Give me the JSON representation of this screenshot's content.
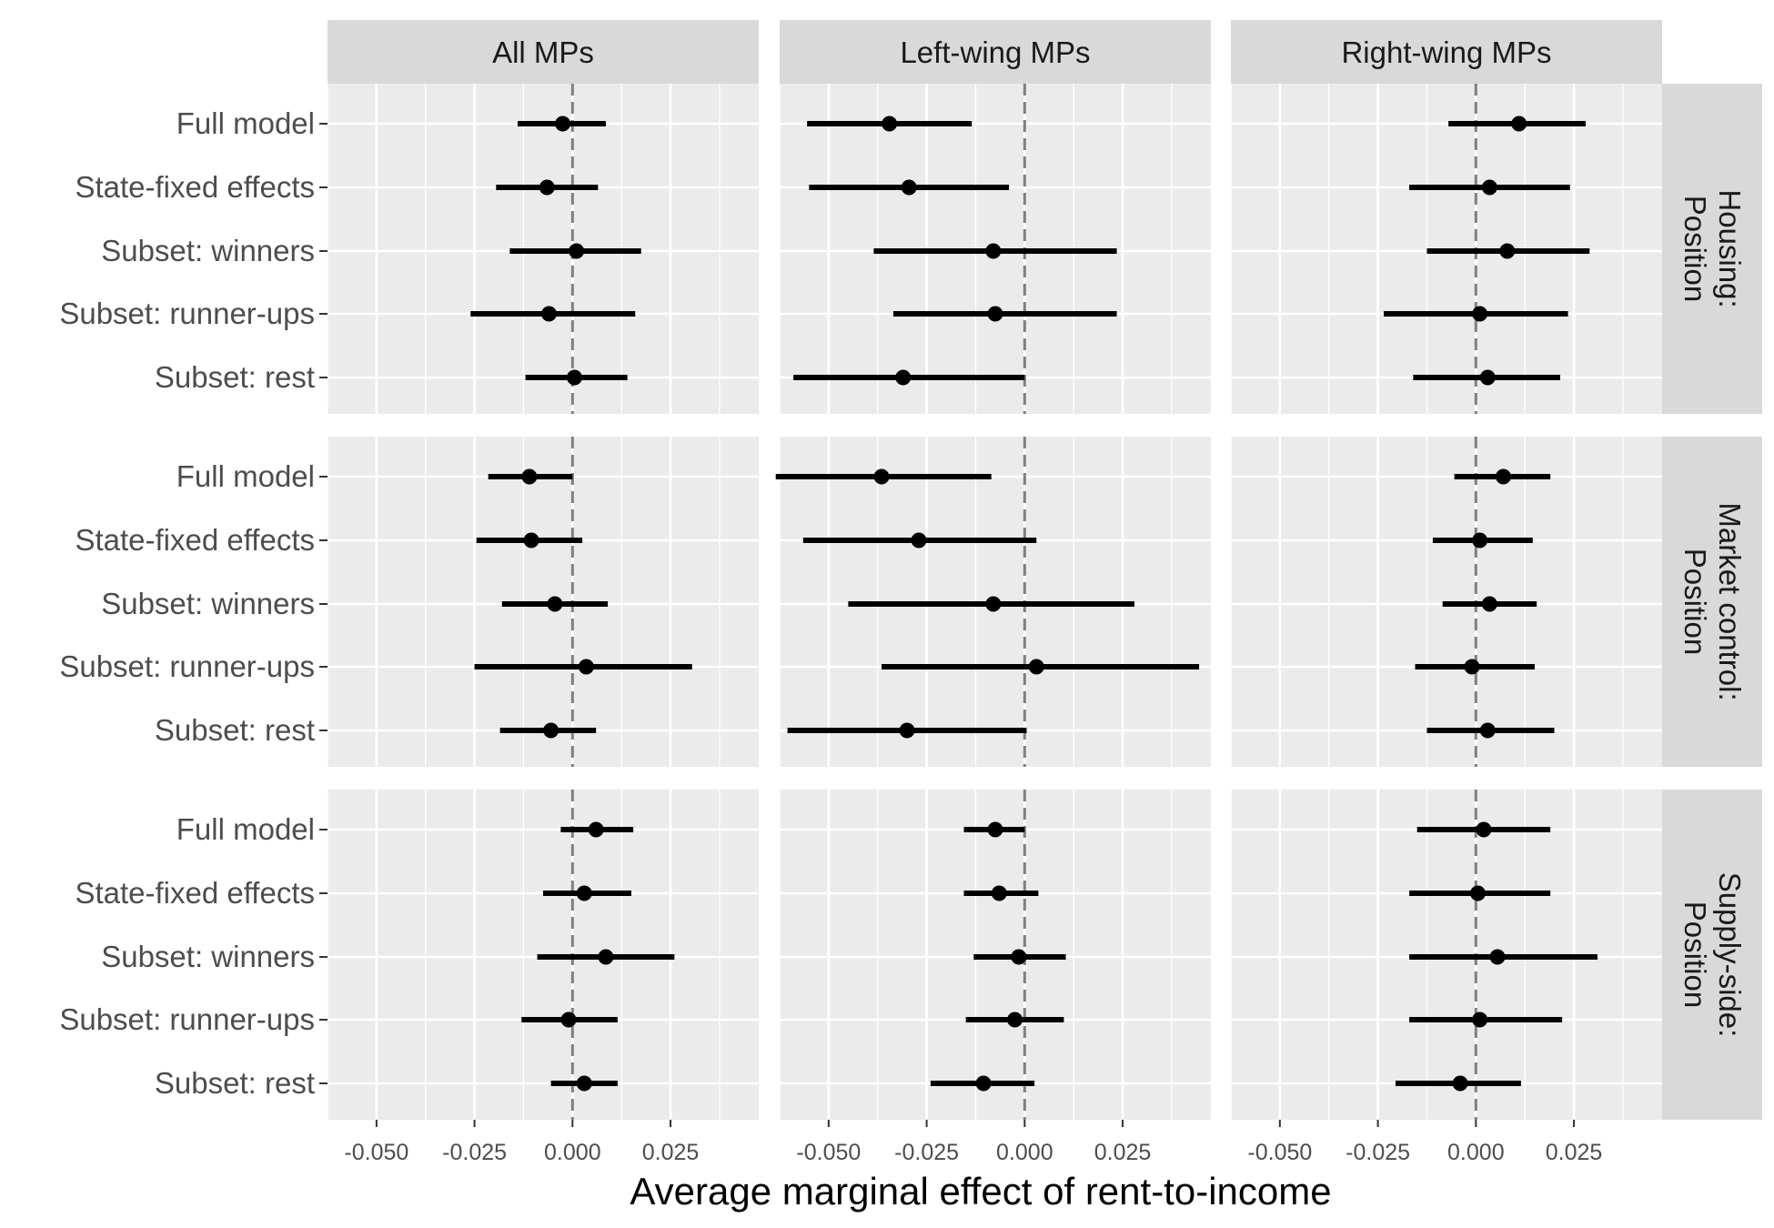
{
  "chart_data": {
    "type": "scatter",
    "subtype": "point-range coefficient plot, faceted grid",
    "xlabel": "Average marginal effect of rent-to-income",
    "xlim": [
      -0.0625,
      0.0475
    ],
    "x_ticks": [
      "-0.050",
      "-0.025",
      "0.000",
      "0.025"
    ],
    "x_tick_values": [
      -0.05,
      -0.025,
      0.0,
      0.025
    ],
    "reference_line_x": 0.0,
    "grid": true,
    "colors": {
      "panel_bg": "#EBEBEB",
      "strip_bg": "#D9D9D9",
      "grid": "#FFFFFF",
      "point": "#000000",
      "refline": "#7F7F7F"
    },
    "categories": [
      "Full model",
      "State-fixed effects",
      "Subset: winners",
      "Subset: runner-ups",
      "Subset: rest"
    ],
    "col_facets": [
      "All MPs",
      "Left-wing MPs",
      "Right-wing MPs"
    ],
    "row_facets": [
      [
        "Housing:",
        "Position"
      ],
      [
        "Market control:",
        "Position"
      ],
      [
        "Supply-side:",
        "Position"
      ]
    ],
    "panels": [
      [
        [
          {
            "est": -0.0025,
            "lo": -0.014,
            "hi": 0.0085
          },
          {
            "est": -0.0065,
            "lo": -0.0195,
            "hi": 0.0065
          },
          {
            "est": 0.001,
            "lo": -0.016,
            "hi": 0.0175
          },
          {
            "est": -0.006,
            "lo": -0.026,
            "hi": 0.016
          },
          {
            "est": 0.0005,
            "lo": -0.012,
            "hi": 0.014
          }
        ],
        [
          {
            "est": -0.0345,
            "lo": -0.0555,
            "hi": -0.0135
          },
          {
            "est": -0.0295,
            "lo": -0.055,
            "hi": -0.004
          },
          {
            "est": -0.008,
            "lo": -0.0385,
            "hi": 0.0235
          },
          {
            "est": -0.0075,
            "lo": -0.0335,
            "hi": 0.0235
          },
          {
            "est": -0.031,
            "lo": -0.059,
            "hi": 0.0
          }
        ],
        [
          {
            "est": 0.011,
            "lo": -0.007,
            "hi": 0.028
          },
          {
            "est": 0.0035,
            "lo": -0.017,
            "hi": 0.024
          },
          {
            "est": 0.008,
            "lo": -0.0125,
            "hi": 0.029
          },
          {
            "est": 0.001,
            "lo": -0.0235,
            "hi": 0.0235
          },
          {
            "est": 0.003,
            "lo": -0.016,
            "hi": 0.0215
          }
        ]
      ],
      [
        [
          {
            "est": -0.011,
            "lo": -0.0215,
            "hi": 0.0
          },
          {
            "est": -0.0105,
            "lo": -0.0245,
            "hi": 0.0025
          },
          {
            "est": -0.0045,
            "lo": -0.018,
            "hi": 0.009
          },
          {
            "est": 0.0035,
            "lo": -0.025,
            "hi": 0.0305
          },
          {
            "est": -0.0055,
            "lo": -0.0185,
            "hi": 0.006
          }
        ],
        [
          {
            "est": -0.0365,
            "lo": -0.0635,
            "hi": -0.0085
          },
          {
            "est": -0.027,
            "lo": -0.0565,
            "hi": 0.003
          },
          {
            "est": -0.008,
            "lo": -0.045,
            "hi": 0.028
          },
          {
            "est": 0.003,
            "lo": -0.0365,
            "hi": 0.0445
          },
          {
            "est": -0.03,
            "lo": -0.0605,
            "hi": 0.0005
          }
        ],
        [
          {
            "est": 0.007,
            "lo": -0.0055,
            "hi": 0.019
          },
          {
            "est": 0.001,
            "lo": -0.011,
            "hi": 0.0145
          },
          {
            "est": 0.0035,
            "lo": -0.0085,
            "hi": 0.0155
          },
          {
            "est": -0.001,
            "lo": -0.0155,
            "hi": 0.015
          },
          {
            "est": 0.003,
            "lo": -0.0125,
            "hi": 0.02
          }
        ]
      ],
      [
        [
          {
            "est": 0.006,
            "lo": -0.003,
            "hi": 0.0155
          },
          {
            "est": 0.003,
            "lo": -0.0075,
            "hi": 0.015
          },
          {
            "est": 0.0085,
            "lo": -0.009,
            "hi": 0.026
          },
          {
            "est": -0.001,
            "lo": -0.013,
            "hi": 0.0115
          },
          {
            "est": 0.003,
            "lo": -0.0055,
            "hi": 0.0115
          }
        ],
        [
          {
            "est": -0.0075,
            "lo": -0.0155,
            "hi": 0.0
          },
          {
            "est": -0.0065,
            "lo": -0.0155,
            "hi": 0.0035
          },
          {
            "est": -0.0015,
            "lo": -0.013,
            "hi": 0.0105
          },
          {
            "est": -0.0025,
            "lo": -0.015,
            "hi": 0.01
          },
          {
            "est": -0.0105,
            "lo": -0.024,
            "hi": 0.0025
          }
        ],
        [
          {
            "est": 0.002,
            "lo": -0.015,
            "hi": 0.019
          },
          {
            "est": 0.0005,
            "lo": -0.017,
            "hi": 0.019
          },
          {
            "est": 0.0055,
            "lo": -0.017,
            "hi": 0.031
          },
          {
            "est": 0.001,
            "lo": -0.017,
            "hi": 0.022
          },
          {
            "est": -0.004,
            "lo": -0.0205,
            "hi": 0.0115
          }
        ]
      ]
    ]
  }
}
